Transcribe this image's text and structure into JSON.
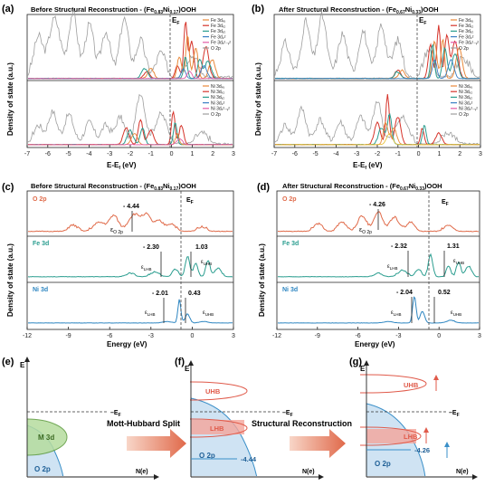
{
  "panels": {
    "a": {
      "letter": "(a)",
      "title_prefix": "Before Structural Reconstruction - (Fe",
      "title_sub1": "0.83",
      "title_mid": "Ni",
      "title_sub2": "0.17",
      "title_suffix": ")OOH",
      "ylabel": "Density of state (a.u.)",
      "xlabel": "E-E",
      "xlabel_sub": "f",
      "xlabel_unit": " (eV)",
      "ef_label": "E",
      "ef_sub": "F",
      "xticks": [
        "-7",
        "-6",
        "-5",
        "-4",
        "-3",
        "-2",
        "-1",
        "0",
        "1",
        "2",
        "3"
      ],
      "legend_top": [
        "Fe 3dₓᵧ",
        "Fe 3dₓ₂",
        "Fe 3dᵧ₂",
        "Fe 3d₂²",
        "Fe 3dₓ²₋ᵧ²",
        "O 2p"
      ],
      "legend_bottom": [
        "Ni 3dₓᵧ",
        "Ni 3dₓ₂",
        "Ni 3dᵧ₂",
        "Ni 3d₂²",
        "Ni 3dₓ²₋ᵧ²",
        "O 2p"
      ]
    },
    "b": {
      "letter": "(b)",
      "title_prefix": "After Structural Reconstruction - (Fe",
      "title_sub1": "0.67",
      "title_mid": "Ni",
      "title_sub2": "0.33",
      "title_suffix": ")OOH",
      "ylabel": "Density of state (a.u.)",
      "xlabel": "E-E",
      "xlabel_sub": "f",
      "xlabel_unit": " (eV)",
      "ef_label": "E",
      "ef_sub": "F",
      "xticks": [
        "-7",
        "-6",
        "-5",
        "-4",
        "-3",
        "-2",
        "-1",
        "0",
        "1",
        "2",
        "3"
      ]
    },
    "c": {
      "letter": "(c)",
      "title_prefix": "Before Structural Reconstruction - (Fe",
      "title_sub1": "0.83",
      "title_mid": "Ni",
      "title_sub2": "0.17",
      "title_suffix": ")OOH",
      "ylabel": "Density of state (a.u.)",
      "xlabel": "Energy (eV)",
      "xticks": [
        "-12",
        "-9",
        "-6",
        "-3",
        "0",
        "3"
      ],
      "ef_label": "E",
      "ef_sub": "F",
      "tracks": [
        {
          "name": "O 2p",
          "color": "#e06b4a",
          "value": "- 4.44",
          "label": "ε",
          "label_sub": "O 2p"
        },
        {
          "name": "Fe 3d",
          "color": "#2a9d8f",
          "value_lhb": "- 2.30",
          "value_uhb": "1.03",
          "lhb": "ε",
          "lhb_sub": "LHB",
          "uhb": "ε",
          "uhb_sub": "UHB"
        },
        {
          "name": "Ni 3d",
          "color": "#2e86c1",
          "value_lhb": "- 2.01",
          "value_uhb": "0.43",
          "lhb": "ε",
          "lhb_sub": "LHB",
          "uhb": "ε",
          "uhb_sub": "UHB"
        }
      ]
    },
    "d": {
      "letter": "(d)",
      "title_prefix": "After  Structural Reconstruction - (Fe",
      "title_sub1": "0.67",
      "title_mid": "Ni",
      "title_sub2": "0.33",
      "title_suffix": ")OOH",
      "ylabel": "Density of state (a.u.)",
      "xlabel": "Energy (eV)",
      "xticks": [
        "-12",
        "-9",
        "-6",
        "-3",
        "0",
        "3"
      ],
      "ef_label": "E",
      "ef_sub": "F",
      "tracks": [
        {
          "name": "O 2p",
          "color": "#e06b4a",
          "value": "- 4.26",
          "label": "ε",
          "label_sub": "O 2p"
        },
        {
          "name": "Fe 3d",
          "color": "#2a9d8f",
          "value_lhb": "- 2.32",
          "value_uhb": "1.31",
          "lhb": "ε",
          "lhb_sub": "LHB",
          "uhb": "ε",
          "uhb_sub": "UHB"
        },
        {
          "name": "Ni 3d",
          "color": "#2e86c1",
          "value_lhb": "- 2.04",
          "value_uhb": "0.52",
          "lhb": "ε",
          "lhb_sub": "LHB",
          "uhb": "ε",
          "uhb_sub": "UHB"
        }
      ]
    },
    "e": {
      "letter": "(e)",
      "axis_e": "E",
      "axis_n": "N(e)",
      "m3d": "M 3d",
      "o2p": "O 2p",
      "ef": "E",
      "ef_sub": "F"
    },
    "f": {
      "letter": "(f)",
      "axis_e": "E",
      "axis_n": "N(e)",
      "uhb": "UHB",
      "lhb": "LHB",
      "o2p": "O 2p",
      "value": "-4.44",
      "ef": "E",
      "ef_sub": "F"
    },
    "g": {
      "letter": "(g)",
      "axis_e": "E",
      "axis_n": "N(e)",
      "uhb": "UHB",
      "lhb": "LHB",
      "o2p": "O 2p",
      "value": "-4.26",
      "ef": "E",
      "ef_sub": "F"
    },
    "arrow1": "Mott-Hubbard Split",
    "arrow2": "Structural Reconstruction"
  },
  "colors": {
    "o2p_gray": "#9e9e9e",
    "orange": "#e8893a",
    "red": "#d6342b",
    "teal": "#2a9d8f",
    "blue": "#3a7fc4",
    "pink": "#e35ca6",
    "yellow": "#e8c23a",
    "arrow": "#e8866a",
    "orbital_blue": "#3a8fc8",
    "orbital_red": "#e05a4a",
    "green": "#7cbf5a"
  }
}
